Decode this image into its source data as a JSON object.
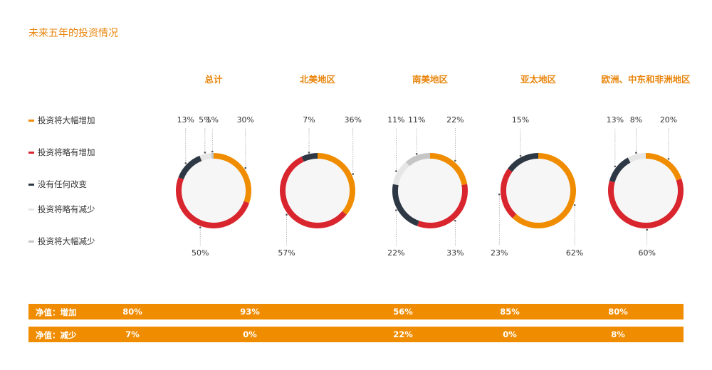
{
  "title": "未来五年的投资情况",
  "legend": [
    {
      "label": "投资将大幅增加",
      "color": "#f08c00"
    },
    {
      "label": "投资将略有增加",
      "color": "#d9262e"
    },
    {
      "label": "没有任何改变",
      "color": "#2e3845"
    },
    {
      "label": "投资将略有减少",
      "color": "#e6e6e6"
    },
    {
      "label": "投资将大幅减少",
      "color": "#c6c6c6"
    }
  ],
  "chart_data": [
    {
      "type": "pie",
      "title": "总计",
      "labels": [
        "投资将大幅增加",
        "投资将略有增加",
        "没有任何改变",
        "投资将略有减少",
        "投资将大幅减少"
      ],
      "values": [
        30,
        50,
        13,
        5,
        1
      ],
      "value_labels": [
        "30%",
        "50%",
        "13%",
        "5%",
        "1%"
      ]
    },
    {
      "type": "pie",
      "title": "北美地区",
      "labels": [
        "投资将大幅增加",
        "投资将略有增加",
        "没有任何改变",
        "投资将略有减少",
        "投资将大幅减少"
      ],
      "values": [
        36,
        57,
        7,
        0,
        0
      ],
      "value_labels": [
        "36%",
        "57%",
        "7%",
        "",
        ""
      ]
    },
    {
      "type": "pie",
      "title": "南美地区",
      "labels": [
        "投资将大幅增加",
        "投资将略有增加",
        "没有任何改变",
        "投资将略有减少",
        "投资将大幅减少"
      ],
      "values": [
        22,
        33,
        22,
        11,
        11
      ],
      "value_labels": [
        "22%",
        "33%",
        "22%",
        "11%",
        "11%"
      ]
    },
    {
      "type": "pie",
      "title": "亚太地区",
      "labels": [
        "投资将大幅增加",
        "投资将略有增加",
        "没有任何改变",
        "投资将略有减少",
        "投资将大幅减少"
      ],
      "values": [
        62,
        23,
        15,
        0,
        0
      ],
      "value_labels": [
        "62%",
        "23%",
        "15%",
        "",
        ""
      ]
    },
    {
      "type": "pie",
      "title": "欧洲、中东和非洲地区",
      "labels": [
        "投资将大幅增加",
        "投资将略有增加",
        "没有任何改变",
        "投资将略有减少",
        "投资将大幅减少"
      ],
      "values": [
        20,
        60,
        13,
        8,
        0
      ],
      "value_labels": [
        "20%",
        "60%",
        "13%",
        "8%",
        ""
      ]
    }
  ],
  "net": {
    "increase": {
      "label": "净值：增加",
      "values": [
        "80%",
        "93%",
        "56%",
        "85%",
        "80%"
      ]
    },
    "decrease": {
      "label": "净值：减少",
      "values": [
        "7%",
        "0%",
        "22%",
        "0%",
        "8%"
      ]
    }
  }
}
